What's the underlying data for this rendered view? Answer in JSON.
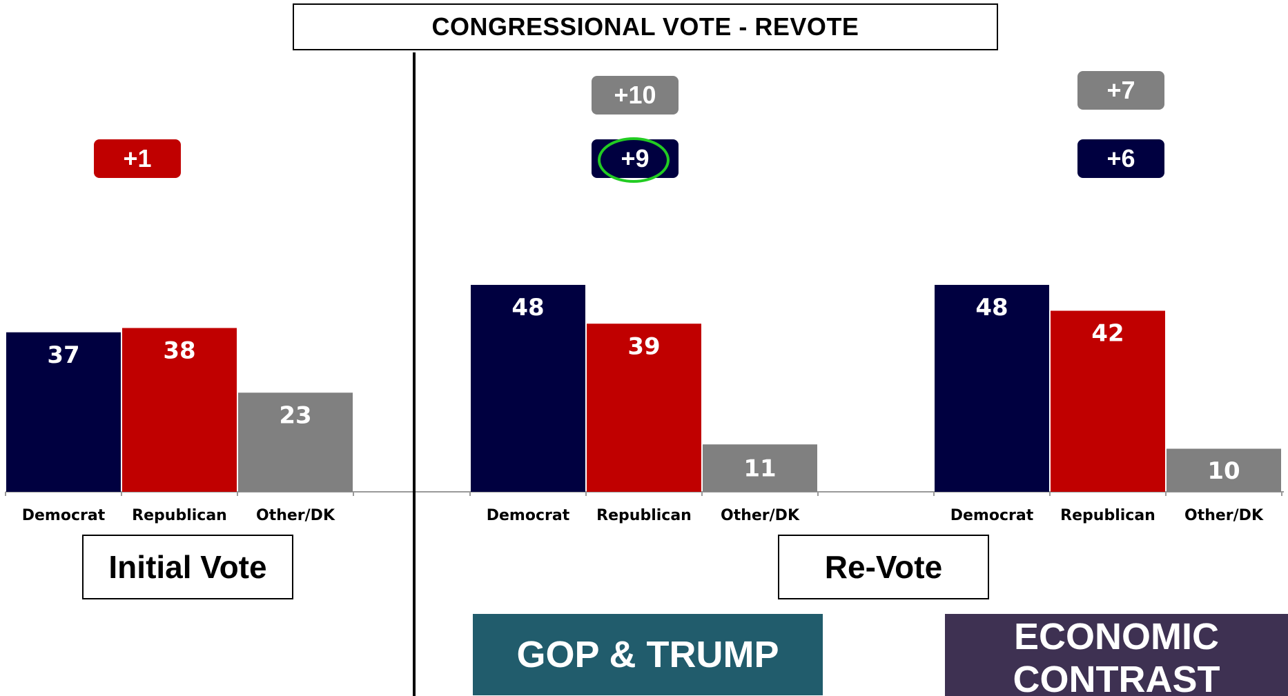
{
  "header": {
    "title": "CONGRESSIONAL VOTE - REVOTE"
  },
  "colors": {
    "democrat": "#000040",
    "republican": "#C00000",
    "other": "#808080",
    "ring": "#22CC22",
    "gop_box": "#215C6C",
    "econ_box": "#3E3152"
  },
  "margins": {
    "initial": {
      "label": "+1",
      "color": "#C00000"
    },
    "gop_trump_other": {
      "label": "+10",
      "color": "#808080"
    },
    "gop_trump_dem": {
      "label": "+9",
      "color": "#000040",
      "highlighted": true
    },
    "economic_other": {
      "label": "+7",
      "color": "#808080"
    },
    "economic_dem": {
      "label": "+6",
      "color": "#000040"
    }
  },
  "labels": {
    "initial_vote": "Initial Vote",
    "re_vote": "Re-Vote"
  },
  "scenarios": {
    "gop_trump": "GOP & TRUMP",
    "economic_line1": "ECONOMIC",
    "economic_line2": "CONTRAST"
  },
  "chart_data": [
    {
      "type": "bar",
      "group": "Initial Vote",
      "categories": [
        "Democrat",
        "Republican",
        "Other/DK"
      ],
      "values": [
        37,
        38,
        23
      ],
      "colors": [
        "#000040",
        "#C00000",
        "#808080"
      ]
    },
    {
      "type": "bar",
      "group": "GOP & TRUMP",
      "categories": [
        "Democrat",
        "Republican",
        "Other/DK"
      ],
      "values": [
        48,
        39,
        11
      ],
      "colors": [
        "#000040",
        "#C00000",
        "#808080"
      ]
    },
    {
      "type": "bar",
      "group": "ECONOMIC CONTRAST",
      "categories": [
        "Democrat",
        "Republican",
        "Other/DK"
      ],
      "values": [
        48,
        42,
        10
      ],
      "colors": [
        "#000040",
        "#C00000",
        "#808080"
      ]
    }
  ]
}
